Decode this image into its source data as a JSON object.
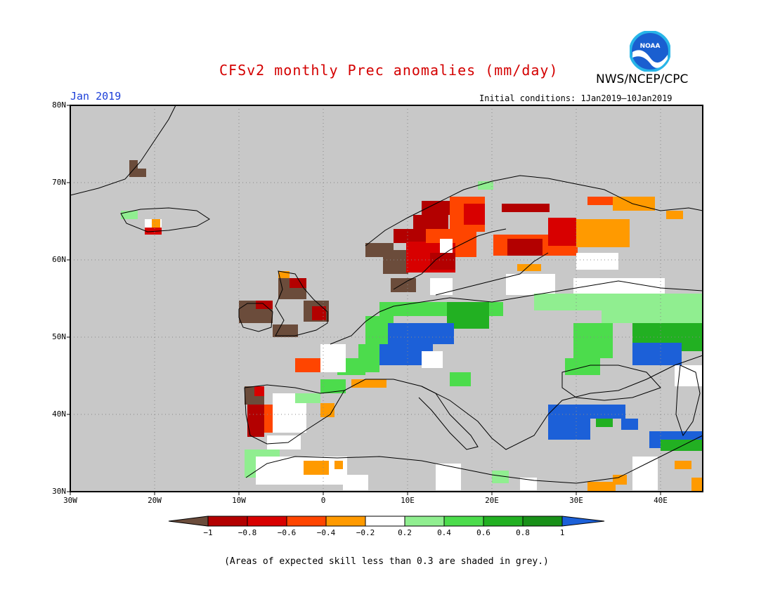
{
  "header": {
    "title": "CFSv2 monthly Prec anomalies (mm/day)",
    "agency": "NWS/NCEP/CPC",
    "logo_text": "NOAA",
    "month": "Jan 2019",
    "initial_conditions": "Initial conditions: 1Jan2019–10Jan2019"
  },
  "map": {
    "lat_labels": [
      "80N",
      "70N",
      "60N",
      "50N",
      "40N",
      "30N"
    ],
    "lon_labels": [
      "30W",
      "20W",
      "10W",
      "0",
      "10E",
      "20E",
      "30E",
      "40E"
    ],
    "background_color": "#c8c8c8"
  },
  "colorbar": {
    "labels": [
      "−1",
      "−0.8",
      "−0.6",
      "−0.4",
      "−0.2",
      "0.2",
      "0.4",
      "0.6",
      "0.8",
      "1"
    ],
    "colors": [
      "#6b4c3b",
      "#b30000",
      "#d80000",
      "#ff4500",
      "#ff9a00",
      "#ffffff",
      "#90ee90",
      "#4cdc4c",
      "#22b022",
      "#189018",
      "#1c60d8"
    ]
  },
  "footnote": "(Areas of expected skill less than 0.3 are shaded in grey.)"
}
